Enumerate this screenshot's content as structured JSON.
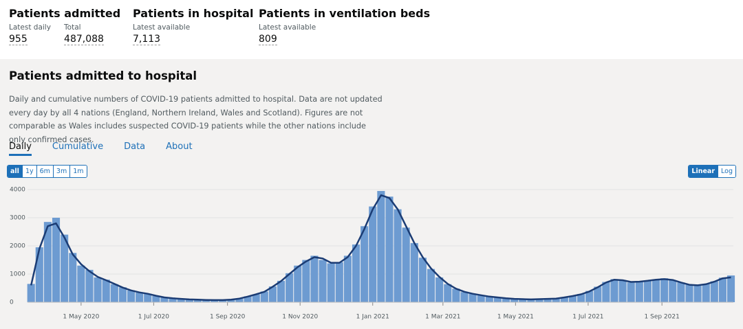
{
  "metrics": [
    {
      "title": "Patients admitted",
      "items": [
        {
          "label": "Latest daily",
          "value": "955"
        },
        {
          "label": "Total",
          "value": "487,088"
        }
      ]
    },
    {
      "title": "Patients in hospital",
      "items": [
        {
          "label": "Latest available",
          "value": "7,113"
        }
      ]
    },
    {
      "title": "Patients in ventilation beds",
      "items": [
        {
          "label": "Latest available",
          "value": "809"
        }
      ]
    }
  ],
  "card": {
    "title": "Patients admitted to hospital",
    "description": "Daily and cumulative numbers of COVID-19 patients admitted to hospital. Data are not updated every day by all 4 nations (England, Northern Ireland, Wales and Scotland). Figures are not comparable as Wales includes suspected COVID-19 patients while the other nations include only confirmed cases.",
    "tabs": [
      "Daily",
      "Cumulative",
      "Data",
      "About"
    ],
    "ranges": [
      "all",
      "1y",
      "6m",
      "3m",
      "1m"
    ],
    "scales": [
      "Linear",
      "Log"
    ]
  },
  "chart_data": {
    "type": "bar",
    "x": [
      "2020-03-20",
      "2020-03-27",
      "2020-04-03",
      "2020-04-10",
      "2020-04-17",
      "2020-04-24",
      "2020-05-01",
      "2020-05-08",
      "2020-05-15",
      "2020-05-22",
      "2020-05-29",
      "2020-06-05",
      "2020-06-12",
      "2020-06-19",
      "2020-06-26",
      "2020-07-03",
      "2020-07-10",
      "2020-07-17",
      "2020-07-24",
      "2020-07-31",
      "2020-08-07",
      "2020-08-14",
      "2020-08-21",
      "2020-08-28",
      "2020-09-04",
      "2020-09-11",
      "2020-09-18",
      "2020-09-25",
      "2020-10-02",
      "2020-10-09",
      "2020-10-16",
      "2020-10-23",
      "2020-10-30",
      "2020-11-06",
      "2020-11-13",
      "2020-11-20",
      "2020-11-27",
      "2020-12-04",
      "2020-12-11",
      "2020-12-18",
      "2020-12-25",
      "2021-01-01",
      "2021-01-08",
      "2021-01-15",
      "2021-01-22",
      "2021-01-29",
      "2021-02-05",
      "2021-02-12",
      "2021-02-19",
      "2021-02-26",
      "2021-03-05",
      "2021-03-12",
      "2021-03-19",
      "2021-03-26",
      "2021-04-02",
      "2021-04-09",
      "2021-04-16",
      "2021-04-23",
      "2021-04-30",
      "2021-05-07",
      "2021-05-14",
      "2021-05-21",
      "2021-05-28",
      "2021-06-04",
      "2021-06-11",
      "2021-06-18",
      "2021-06-25",
      "2021-07-02",
      "2021-07-09",
      "2021-07-16",
      "2021-07-23",
      "2021-07-30",
      "2021-08-06",
      "2021-08-13",
      "2021-08-20",
      "2021-08-27",
      "2021-09-03",
      "2021-09-10",
      "2021-09-17",
      "2021-09-24",
      "2021-10-01",
      "2021-10-08",
      "2021-10-15",
      "2021-10-22",
      "2021-10-29"
    ],
    "values": [
      650,
      1950,
      2850,
      3000,
      2400,
      1750,
      1300,
      1150,
      880,
      800,
      640,
      530,
      420,
      340,
      300,
      220,
      170,
      140,
      120,
      100,
      90,
      80,
      75,
      70,
      90,
      130,
      210,
      280,
      380,
      560,
      760,
      1030,
      1300,
      1500,
      1650,
      1500,
      1380,
      1420,
      1650,
      2050,
      2700,
      3400,
      3950,
      3750,
      3300,
      2650,
      2100,
      1580,
      1180,
      880,
      640,
      480,
      360,
      300,
      240,
      200,
      170,
      140,
      120,
      110,
      100,
      110,
      120,
      130,
      170,
      230,
      290,
      400,
      550,
      720,
      820,
      780,
      700,
      740,
      770,
      810,
      850,
      780,
      700,
      620,
      600,
      650,
      740,
      870,
      950
    ],
    "average": [
      600,
      1900,
      2700,
      2800,
      2300,
      1700,
      1350,
      1100,
      900,
      780,
      650,
      520,
      420,
      350,
      300,
      230,
      170,
      140,
      120,
      100,
      90,
      80,
      75,
      75,
      90,
      130,
      200,
      280,
      370,
      550,
      750,
      1000,
      1250,
      1450,
      1600,
      1550,
      1400,
      1400,
      1600,
      2000,
      2600,
      3300,
      3800,
      3700,
      3300,
      2700,
      2100,
      1600,
      1200,
      900,
      650,
      480,
      370,
      300,
      250,
      200,
      170,
      140,
      120,
      110,
      100,
      110,
      120,
      130,
      170,
      220,
      280,
      380,
      530,
      700,
      800,
      780,
      720,
      730,
      760,
      800,
      820,
      790,
      700,
      620,
      600,
      640,
      730,
      850,
      880
    ],
    "bar_color": "#6d9bd1",
    "line_color": "#1b3c74",
    "xlim": [
      "2020-03-17",
      "2021-10-31"
    ],
    "xticks": [
      {
        "value": "2020-05-01",
        "label": "1 May 2020"
      },
      {
        "value": "2020-07-01",
        "label": "1 Jul 2020"
      },
      {
        "value": "2020-09-01",
        "label": "1 Sep 2020"
      },
      {
        "value": "2020-11-01",
        "label": "1 Nov 2020"
      },
      {
        "value": "2021-01-01",
        "label": "1 Jan 2021"
      },
      {
        "value": "2021-03-01",
        "label": "1 Mar 2021"
      },
      {
        "value": "2021-05-01",
        "label": "1 May 2021"
      },
      {
        "value": "2021-07-01",
        "label": "1 Jul 2021"
      },
      {
        "value": "2021-09-01",
        "label": "1 Sep 2021"
      }
    ],
    "ylim": [
      0,
      4000
    ],
    "yticks": [
      0,
      1000,
      2000,
      3000,
      4000
    ],
    "grid": true
  }
}
